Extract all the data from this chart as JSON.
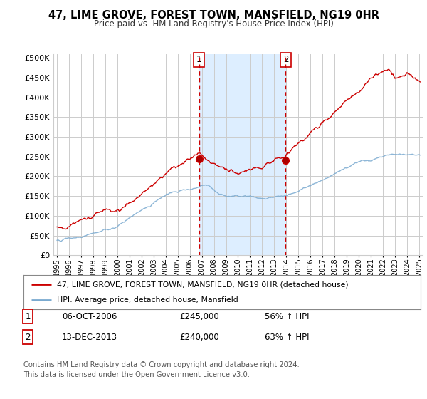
{
  "title": "47, LIME GROVE, FOREST TOWN, MANSFIELD, NG19 0HR",
  "subtitle": "Price paid vs. HM Land Registry's House Price Index (HPI)",
  "legend_line1": "47, LIME GROVE, FOREST TOWN, MANSFIELD, NG19 0HR (detached house)",
  "legend_line2": "HPI: Average price, detached house, Mansfield",
  "footnote": "Contains HM Land Registry data © Crown copyright and database right 2024.\nThis data is licensed under the Open Government Licence v3.0.",
  "sale1_label": "1",
  "sale1_date": "06-OCT-2006",
  "sale1_price": "£245,000",
  "sale1_hpi": "56% ↑ HPI",
  "sale2_label": "2",
  "sale2_date": "13-DEC-2013",
  "sale2_price": "£240,000",
  "sale2_hpi": "63% ↑ HPI",
  "sale1_x": 2006.77,
  "sale1_y": 245000,
  "sale2_x": 2013.95,
  "sale2_y": 240000,
  "hpi_shade_x1": 2006.77,
  "hpi_shade_x2": 2013.95,
  "ylim": [
    0,
    510000
  ],
  "xlim": [
    1994.7,
    2025.3
  ],
  "red_color": "#cc0000",
  "blue_color": "#7aaad0",
  "shade_color": "#ddeeff",
  "vline_color": "#cc0000",
  "grid_color": "#cccccc",
  "background_color": "#ffffff"
}
